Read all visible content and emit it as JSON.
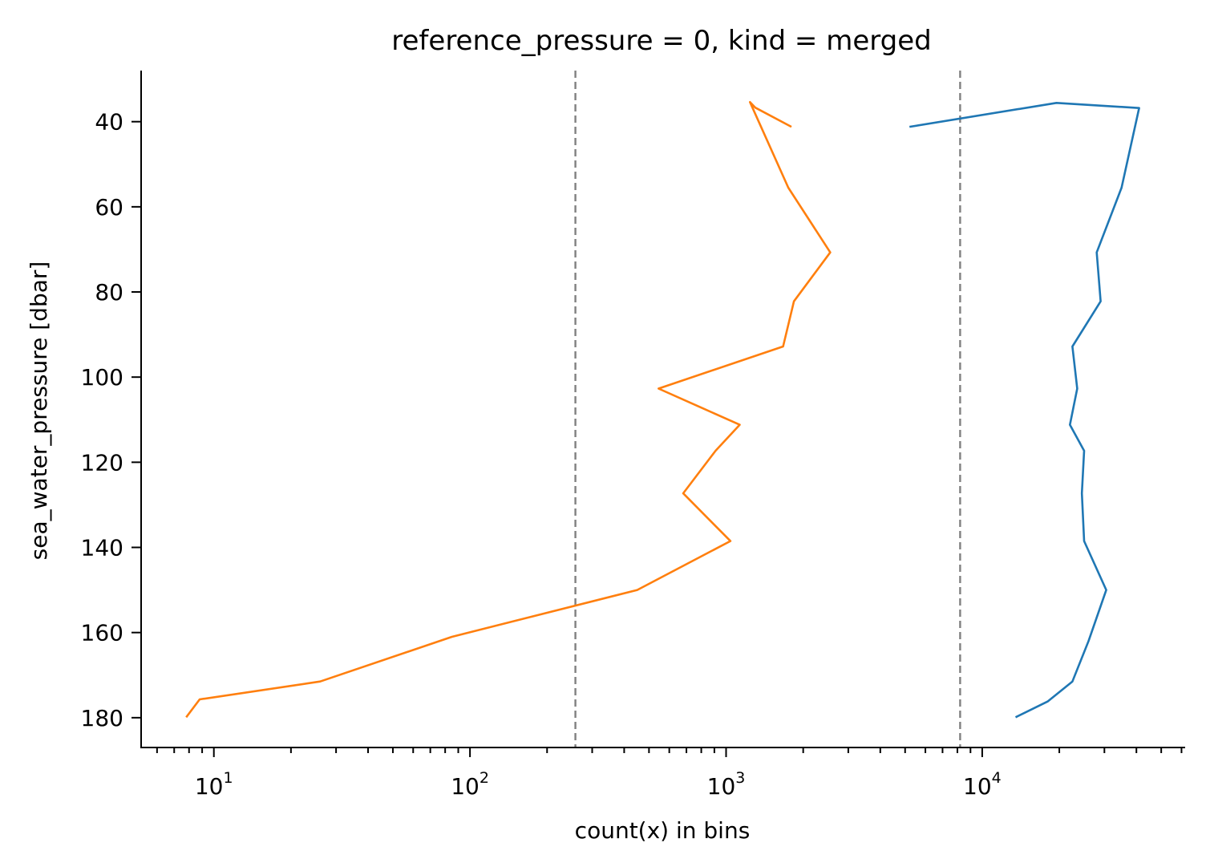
{
  "chart_data": {
    "type": "line",
    "title": "reference_pressure = 0, kind = merged",
    "xlabel": "count(x) in bins",
    "ylabel": "sea_water_pressure [dbar]",
    "xscale": "log",
    "xlim": [
      5.2,
      62000
    ],
    "ylim": [
      187,
      28
    ],
    "y_inverted": true,
    "x_major_ticks": [
      10,
      100,
      1000,
      10000
    ],
    "x_tick_labels": [
      {
        "base": "10",
        "exp": "1"
      },
      {
        "base": "10",
        "exp": "2"
      },
      {
        "base": "10",
        "exp": "3"
      },
      {
        "base": "10",
        "exp": "4"
      }
    ],
    "y_ticks": [
      40,
      60,
      80,
      100,
      120,
      140,
      160,
      180
    ],
    "grid": false,
    "reference_lines": [
      {
        "x": 258,
        "color": "#808080",
        "style": "dashed"
      },
      {
        "x": 8200,
        "color": "#808080",
        "style": "dashed"
      }
    ],
    "series": [
      {
        "color": "#1f77b4",
        "points": [
          {
            "x": 5200,
            "y": 41.2
          },
          {
            "x": 19500,
            "y": 35.6
          },
          {
            "x": 41000,
            "y": 36.8
          },
          {
            "x": 35000,
            "y": 55.5
          },
          {
            "x": 28000,
            "y": 70.7
          },
          {
            "x": 29000,
            "y": 82.2
          },
          {
            "x": 22500,
            "y": 92.8
          },
          {
            "x": 23500,
            "y": 102.7
          },
          {
            "x": 22000,
            "y": 111.2
          },
          {
            "x": 25000,
            "y": 117.3
          },
          {
            "x": 24500,
            "y": 127.3
          },
          {
            "x": 25000,
            "y": 138.5
          },
          {
            "x": 30500,
            "y": 150.0
          },
          {
            "x": 26000,
            "y": 162.0
          },
          {
            "x": 22500,
            "y": 171.5
          },
          {
            "x": 18000,
            "y": 176.2
          },
          {
            "x": 13500,
            "y": 179.9
          }
        ]
      },
      {
        "color": "#ff7f0e",
        "points": [
          {
            "x": 1800,
            "y": 41.2
          },
          {
            "x": 1300,
            "y": 36.7
          },
          {
            "x": 1240,
            "y": 35.4
          },
          {
            "x": 1750,
            "y": 55.5
          },
          {
            "x": 2550,
            "y": 70.7
          },
          {
            "x": 1840,
            "y": 82.2
          },
          {
            "x": 1670,
            "y": 92.8
          },
          {
            "x": 545,
            "y": 102.7
          },
          {
            "x": 1130,
            "y": 111.2
          },
          {
            "x": 910,
            "y": 117.3
          },
          {
            "x": 680,
            "y": 127.3
          },
          {
            "x": 1040,
            "y": 138.5
          },
          {
            "x": 450,
            "y": 150.0
          },
          {
            "x": 85,
            "y": 161.0
          },
          {
            "x": 26,
            "y": 171.5
          },
          {
            "x": 8.8,
            "y": 175.7
          },
          {
            "x": 7.8,
            "y": 179.9
          }
        ]
      }
    ]
  }
}
